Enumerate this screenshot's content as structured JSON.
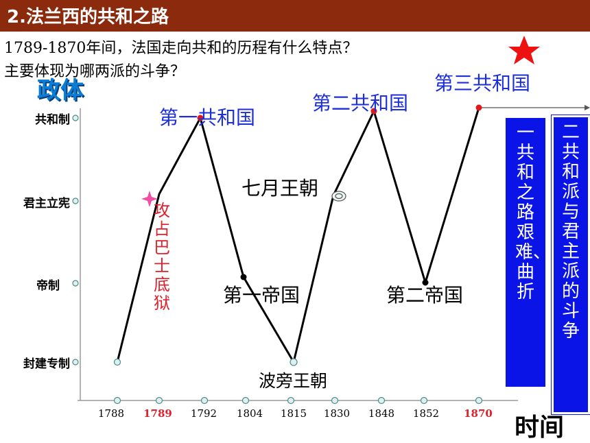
{
  "header": {
    "title": "2.法兰西的共和之路"
  },
  "question": {
    "line1": "1789-1870年间，法国走向共和的历程有什么特点？",
    "line2": "主要体现为哪两派的斗争？"
  },
  "axes": {
    "y_title": "政体",
    "x_title": "时间",
    "y_levels": [
      "封建专制",
      "帝制",
      "君主立宪",
      "共和制"
    ],
    "x_ticks": [
      "1788",
      "1789",
      "1792",
      "1804",
      "1815",
      "1830",
      "1848",
      "1852",
      "1870"
    ],
    "x_highlight": [
      "1789",
      "1870"
    ]
  },
  "events": {
    "first_republic": "第一共和国",
    "second_republic": "第二共和国",
    "third_republic": "第三共和国",
    "july_monarchy": "七月王朝",
    "first_empire": "第一帝国",
    "second_empire": "第二帝国",
    "bourbon": "波旁王朝",
    "bastille": "攻占巴士底狱"
  },
  "conclusions": {
    "box1": "一 共和之路艰难、曲折",
    "box2": "二 共和派与君主派的斗争"
  },
  "colors": {
    "header_bg": "#8b2a0c",
    "label_blue": "#1c2ed8",
    "highlight_red": "#e0202a",
    "box_blue": "#0b14e6"
  },
  "icons": {
    "star": "red-star-icon",
    "bastille_marker": "pink-star-icon",
    "july_marker": "spiral-icon"
  },
  "chart_data": {
    "type": "line",
    "x": [
      "1788",
      "1789",
      "1792",
      "1804",
      "1815",
      "1830",
      "1848",
      "1852",
      "1870"
    ],
    "y": [
      "封建专制",
      "君主立宪",
      "共和制",
      "帝制",
      "封建专制",
      "君主立宪",
      "共和制",
      "帝制",
      "共和制"
    ],
    "ylabel": "政体",
    "xlabel": "时间"
  }
}
